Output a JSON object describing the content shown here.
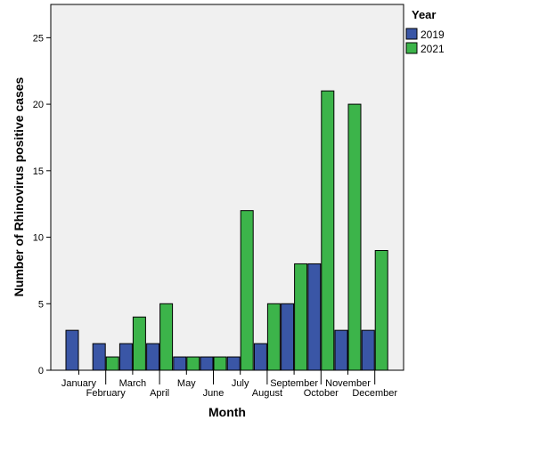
{
  "chart_data": {
    "type": "bar",
    "xlabel": "Month",
    "ylabel": "Number of Rhinovirus positive cases",
    "ylim": [
      0,
      27.5
    ],
    "yticks": [
      0,
      5,
      10,
      15,
      20,
      25
    ],
    "categories": [
      "January",
      "February",
      "March",
      "April",
      "May",
      "June",
      "July",
      "August",
      "September",
      "October",
      "November",
      "December"
    ],
    "legend_title": "Year",
    "legend_position": "top-right",
    "grid": false,
    "series": [
      {
        "name": "2019",
        "color": "#3a56a6",
        "values": [
          3,
          2,
          2,
          2,
          1,
          1,
          1,
          2,
          5,
          8,
          3,
          3
        ]
      },
      {
        "name": "2021",
        "color": "#3cb44a",
        "values": [
          0,
          1,
          4,
          5,
          1,
          1,
          12,
          5,
          8,
          21,
          20,
          9
        ]
      }
    ],
    "plot_background": "#f0f0f0"
  }
}
